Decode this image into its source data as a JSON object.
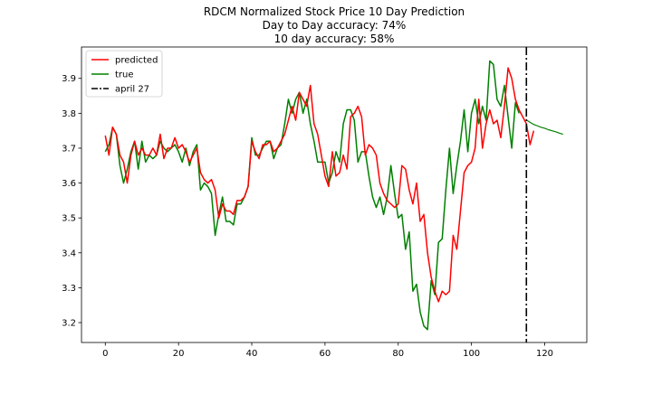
{
  "chart_data": {
    "type": "line",
    "title": "RDCM Normalized Stock Price 10 Day Prediction",
    "subtitle_lines": [
      "Day to Day accuracy: 74%",
      "10 day accuracy: 58%"
    ],
    "xlabel": "",
    "ylabel": "",
    "xlim": [
      -6.5,
      131.5
    ],
    "ylim": [
      3.143,
      3.99
    ],
    "x_ticks": [
      0,
      20,
      40,
      60,
      80,
      100,
      120
    ],
    "y_ticks": [
      3.2,
      3.3,
      3.4,
      3.5,
      3.6,
      3.7,
      3.8,
      3.9
    ],
    "y_tick_labels": [
      "3.2",
      "3.3",
      "3.4",
      "3.5",
      "3.6",
      "3.7",
      "3.8",
      "3.9"
    ],
    "grid": false,
    "legend_position": "upper-left",
    "colors": {
      "predicted": "#ff0000",
      "true": "#008000",
      "marker": "#000000"
    },
    "vline": {
      "x": 115,
      "label": "april 27"
    },
    "series": [
      {
        "name": "predicted",
        "color": "#ff0000",
        "x_start": 0,
        "values": [
          3.736,
          3.68,
          3.76,
          3.74,
          3.68,
          3.66,
          3.6,
          3.68,
          3.72,
          3.68,
          3.7,
          3.68,
          3.68,
          3.7,
          3.68,
          3.74,
          3.67,
          3.7,
          3.7,
          3.73,
          3.7,
          3.71,
          3.69,
          3.66,
          3.68,
          3.7,
          3.63,
          3.61,
          3.6,
          3.61,
          3.58,
          3.5,
          3.54,
          3.52,
          3.52,
          3.51,
          3.55,
          3.55,
          3.56,
          3.59,
          3.72,
          3.69,
          3.67,
          3.71,
          3.71,
          3.72,
          3.69,
          3.7,
          3.72,
          3.74,
          3.78,
          3.82,
          3.78,
          3.86,
          3.84,
          3.82,
          3.88,
          3.77,
          3.74,
          3.68,
          3.62,
          3.59,
          3.69,
          3.62,
          3.63,
          3.68,
          3.64,
          3.79,
          3.8,
          3.82,
          3.79,
          3.68,
          3.71,
          3.7,
          3.68,
          3.6,
          3.57,
          3.55,
          3.54,
          3.53,
          3.54,
          3.65,
          3.64,
          3.58,
          3.54,
          3.6,
          3.49,
          3.51,
          3.4,
          3.33,
          3.29,
          3.26,
          3.29,
          3.28,
          3.29,
          3.45,
          3.41,
          3.52,
          3.63,
          3.65,
          3.66,
          3.7,
          3.84,
          3.7,
          3.77,
          3.81,
          3.77,
          3.78,
          3.73,
          3.82,
          3.93,
          3.9,
          3.84,
          3.81,
          3.79,
          3.77,
          3.71,
          3.75
        ]
      },
      {
        "name": "true",
        "color": "#008000",
        "x_start": 0,
        "values": [
          3.69,
          3.71,
          3.76,
          3.74,
          3.65,
          3.6,
          3.64,
          3.69,
          3.72,
          3.64,
          3.72,
          3.66,
          3.68,
          3.67,
          3.68,
          3.72,
          3.7,
          3.69,
          3.7,
          3.71,
          3.69,
          3.66,
          3.7,
          3.65,
          3.69,
          3.71,
          3.58,
          3.6,
          3.59,
          3.57,
          3.45,
          3.51,
          3.56,
          3.49,
          3.49,
          3.48,
          3.54,
          3.54,
          3.56,
          3.59,
          3.73,
          3.68,
          3.68,
          3.7,
          3.72,
          3.72,
          3.67,
          3.7,
          3.71,
          3.77,
          3.84,
          3.8,
          3.84,
          3.86,
          3.8,
          3.84,
          3.77,
          3.72,
          3.66,
          3.66,
          3.66,
          3.6,
          3.63,
          3.69,
          3.66,
          3.77,
          3.81,
          3.81,
          3.78,
          3.66,
          3.69,
          3.69,
          3.62,
          3.56,
          3.53,
          3.56,
          3.51,
          3.56,
          3.65,
          3.57,
          3.5,
          3.51,
          3.41,
          3.46,
          3.29,
          3.31,
          3.23,
          3.19,
          3.18,
          3.32,
          3.28,
          3.43,
          3.44,
          3.58,
          3.7,
          3.57,
          3.65,
          3.72,
          3.81,
          3.69,
          3.8,
          3.84,
          3.77,
          3.82,
          3.78,
          3.95,
          3.94,
          3.84,
          3.82,
          3.88,
          3.79,
          3.7,
          3.83,
          3.8
        ],
        "forecast": {
          "x": [
            115,
            116,
            117,
            118,
            119,
            120,
            121,
            122,
            123,
            124,
            125
          ],
          "values": [
            3.781,
            3.774,
            3.768,
            3.764,
            3.76,
            3.757,
            3.753,
            3.75,
            3.747,
            3.743,
            3.74
          ]
        }
      }
    ]
  }
}
